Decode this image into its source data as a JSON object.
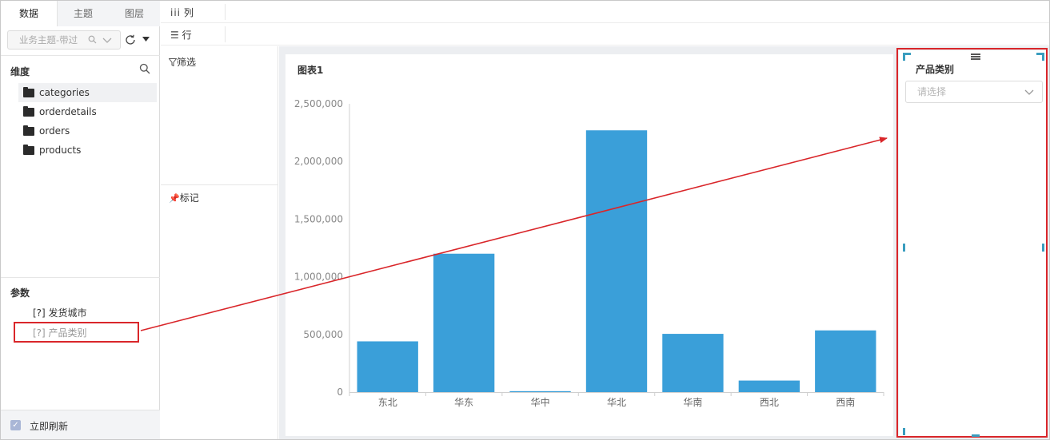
{
  "left_panel": {
    "tabs": [
      "数据",
      "主题",
      "图层"
    ],
    "search": {
      "placeholder": "业务主题-带过"
    },
    "dimensions": {
      "title": "维度",
      "items": [
        "categories",
        "orderdetails",
        "orders",
        "products"
      ]
    },
    "params": {
      "title": "参数",
      "items": [
        "[?] 发货城市",
        "[?] 产品类别"
      ]
    },
    "auto_refresh": {
      "label": "立即刷新",
      "checked": true
    }
  },
  "shelves": {
    "columns_label": "列",
    "rows_label": "行"
  },
  "cards": {
    "filter_label": "筛选",
    "marks_label": "标记"
  },
  "chart_card": {
    "title": "图表1"
  },
  "chart_data": {
    "type": "bar",
    "title": "图表1",
    "categories": [
      "东北",
      "华东",
      "华中",
      "华北",
      "华南",
      "西北",
      "西南"
    ],
    "values": [
      440000,
      1200000,
      8000,
      2270000,
      505000,
      100000,
      535000
    ],
    "ylim": [
      0,
      2500000
    ],
    "yticks": [
      0,
      500000,
      1000000,
      1500000,
      2000000,
      2500000
    ],
    "ytick_labels": [
      "0",
      "500,000",
      "1,000,000",
      "1,500,000",
      "2,000,000",
      "2,500,000"
    ],
    "bar_color": "#3a9fd9",
    "grid": false
  },
  "filter_widget": {
    "title": "产品类别",
    "placeholder": "请选择"
  },
  "colors": {
    "accent": "#3a9fd9",
    "highlight": "#d9262a",
    "handle": "#3a9dbf"
  }
}
